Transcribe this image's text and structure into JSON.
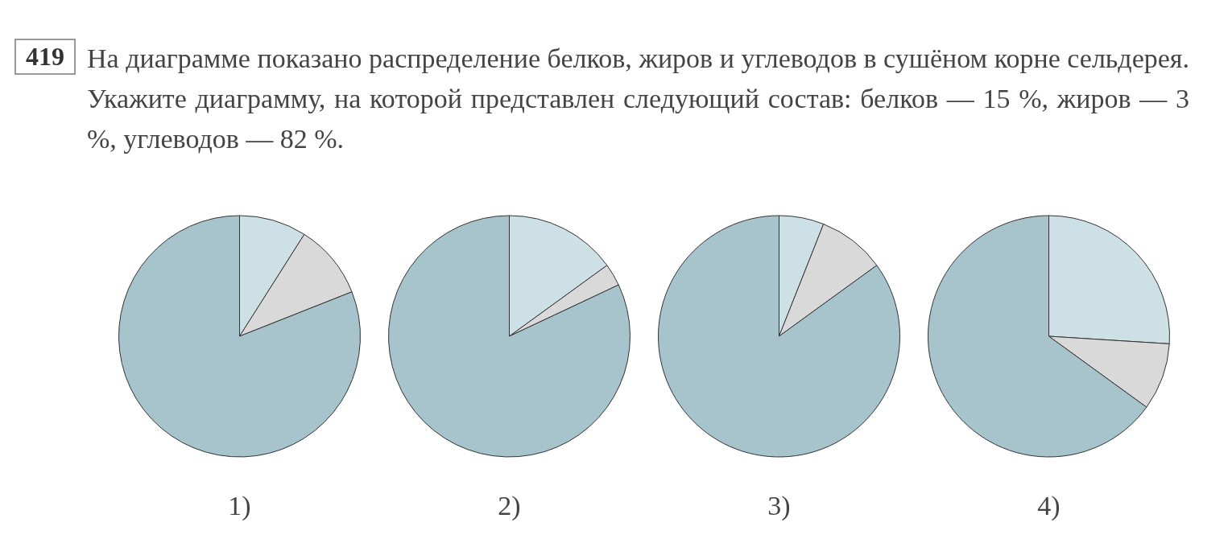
{
  "chart_data": [
    {
      "type": "pie",
      "title": "1)",
      "annotations": [
        "419",
        "На диаграмме показано распределение белков, жиров и углеводов в сушёном корне сельдерея. Укажите диаграмму, на которой представлен следующий состав: белков — 15 %, жиров — 3 %, углеводов — 82 %."
      ],
      "categories": [
        null,
        null,
        null
      ],
      "values": [
        9,
        10,
        81
      ],
      "colors": [
        "#cde0e6",
        "#d9d9d9",
        "#a7c3cb"
      ]
    },
    {
      "type": "pie",
      "title": "2)",
      "categories": [
        null,
        null,
        null
      ],
      "values": [
        15,
        3,
        82
      ],
      "colors": [
        "#cde0e6",
        "#d9d9d9",
        "#a7c3cb"
      ]
    },
    {
      "type": "pie",
      "title": "3)",
      "categories": [
        null,
        null,
        null
      ],
      "values": [
        6,
        9,
        85
      ],
      "colors": [
        "#cde0e6",
        "#d9d9d9",
        "#a7c3cb"
      ]
    },
    {
      "type": "pie",
      "title": "4)",
      "categories": [
        null,
        null,
        null
      ],
      "values": [
        26,
        9,
        65
      ],
      "colors": [
        "#cde0e6",
        "#d9d9d9",
        "#a7c3cb"
      ]
    }
  ]
}
